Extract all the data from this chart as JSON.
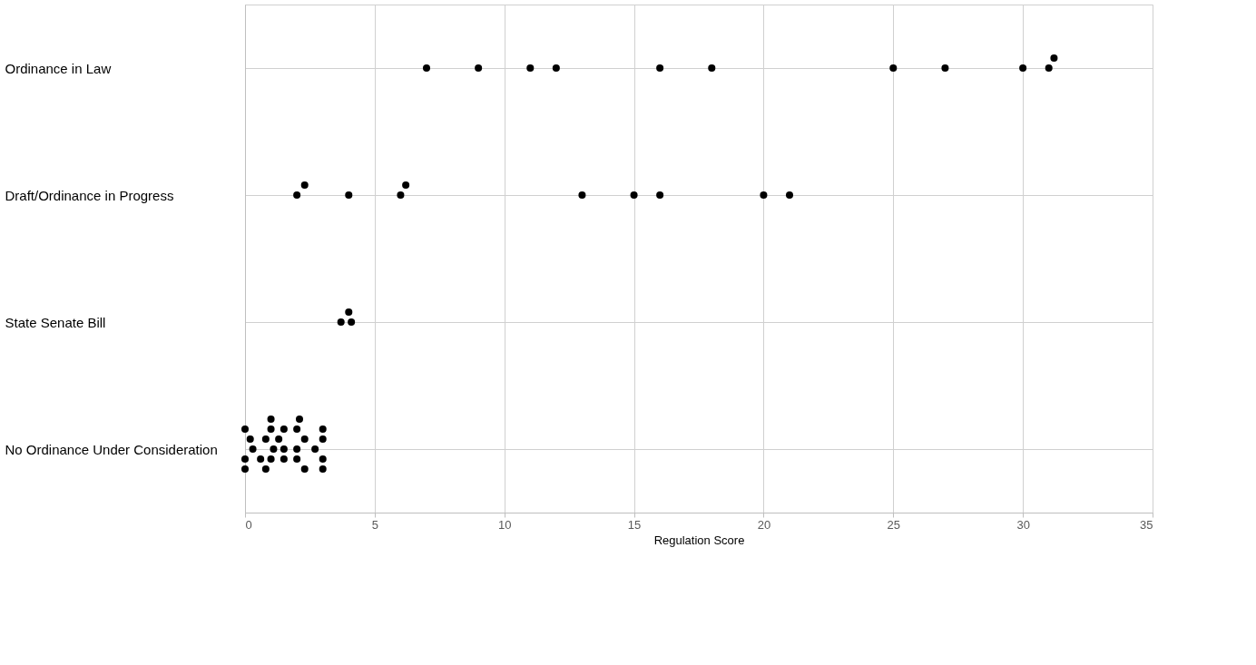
{
  "chart_data": {
    "type": "scatter",
    "orientation": "horizontal",
    "xlabel": "Regulation Score",
    "categories": [
      "Ordinance in Law",
      "Draft/Ordinance in Progress",
      "State Senate Bill",
      "No Ordinance Under Consideration"
    ],
    "xlim": [
      0,
      35
    ],
    "xticks": [
      0,
      5,
      10,
      15,
      20,
      25,
      30,
      35
    ],
    "grid": true,
    "marker": "circle",
    "series": [
      {
        "color": "#000000",
        "x": [
          "Ordinance in Law",
          "Ordinance in Law",
          "Ordinance in Law",
          "Ordinance in Law",
          "Ordinance in Law",
          "Ordinance in Law",
          "Ordinance in Law",
          "Ordinance in Law",
          "Ordinance in Law",
          "Ordinance in Law",
          "Ordinance in Law",
          "Draft/Ordinance in Progress",
          "Draft/Ordinance in Progress",
          "Draft/Ordinance in Progress",
          "Draft/Ordinance in Progress",
          "Draft/Ordinance in Progress",
          "Draft/Ordinance in Progress",
          "Draft/Ordinance in Progress",
          "Draft/Ordinance in Progress",
          "Draft/Ordinance in Progress",
          "Draft/Ordinance in Progress",
          "State Senate Bill",
          "State Senate Bill",
          "State Senate Bill",
          "No Ordinance Under Consideration",
          "No Ordinance Under Consideration",
          "No Ordinance Under Consideration",
          "No Ordinance Under Consideration",
          "No Ordinance Under Consideration",
          "No Ordinance Under Consideration",
          "No Ordinance Under Consideration",
          "No Ordinance Under Consideration",
          "No Ordinance Under Consideration",
          "No Ordinance Under Consideration",
          "No Ordinance Under Consideration",
          "No Ordinance Under Consideration",
          "No Ordinance Under Consideration",
          "No Ordinance Under Consideration",
          "No Ordinance Under Consideration",
          "No Ordinance Under Consideration",
          "No Ordinance Under Consideration",
          "No Ordinance Under Consideration",
          "No Ordinance Under Consideration",
          "No Ordinance Under Consideration",
          "No Ordinance Under Consideration",
          "No Ordinance Under Consideration",
          "No Ordinance Under Consideration",
          "No Ordinance Under Consideration",
          "No Ordinance Under Consideration",
          "No Ordinance Under Consideration",
          "No Ordinance Under Consideration"
        ],
        "values": [
          7,
          9,
          11,
          12,
          16,
          18,
          25,
          27,
          30,
          31,
          31.2,
          2,
          2.3,
          4,
          6,
          6.2,
          13,
          15,
          16,
          20,
          21,
          3.7,
          4,
          4.1,
          0.3,
          1.1,
          2,
          2.7,
          3,
          0.8,
          0.2,
          1.3,
          2.3,
          0,
          0.6,
          1,
          2,
          3,
          1.5,
          2,
          3,
          0,
          1,
          0.8,
          1.5,
          2.3,
          3,
          0,
          2.1,
          1,
          1.5
        ]
      }
    ]
  }
}
